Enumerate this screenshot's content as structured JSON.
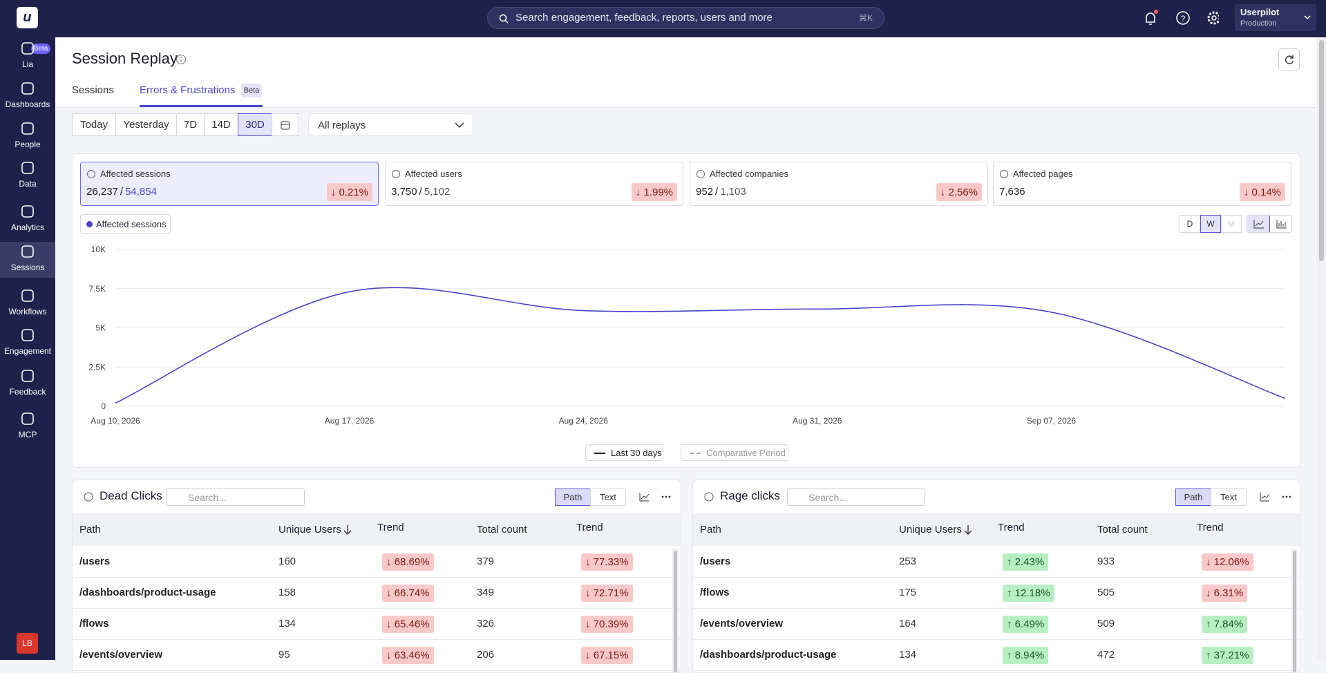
{
  "logo": "u",
  "nav": {
    "items": [
      "Lia",
      "Dashboards",
      "People",
      "Data",
      "Analytics",
      "Sessions",
      "Workflows",
      "Engagement",
      "Feedback",
      "MCP"
    ],
    "badge": "Beta",
    "avatar": "LB"
  },
  "topbar": {
    "search": "Search engagement, feedback, reports, users and more",
    "shortcut": "⌘K",
    "account": "Userpilot",
    "environment": "Production"
  },
  "header": {
    "title": "Session Replay",
    "tabs": [
      "Sessions",
      "Errors & Frustrations"
    ],
    "tab_badge": "Beta"
  },
  "filters": {
    "ranges": [
      "Today",
      "Yesterday",
      "7D",
      "14D",
      "30D"
    ],
    "dropdown": "All replays"
  },
  "metrics": [
    {
      "label": "Affected sessions",
      "value": "26,237",
      "total": "54,854",
      "change": "↓ 0.21%"
    },
    {
      "label": "Affected users",
      "value": "3,750",
      "total": "5,102",
      "change": "↓ 1.99%"
    },
    {
      "label": "Affected companies",
      "value": "952",
      "total": "1,103",
      "change": "↓ 2.56%"
    },
    {
      "label": "Affected pages",
      "value": "7,636",
      "change": "↓ 0.14%"
    }
  ],
  "chart_data": {
    "type": "line",
    "x": [
      "Aug 10, 2026",
      "Aug 17, 2026",
      "Aug 24, 2026",
      "Aug 31, 2026",
      "Sep 07, 2026",
      null
    ],
    "series": [
      {
        "name": "Affected sessions",
        "color": "#4b44c8",
        "values": [
          200,
          7300,
          6100,
          6200,
          6000,
          500
        ]
      }
    ],
    "ylim": [
      0,
      10000
    ],
    "yticks": [
      0,
      {
        "value": 2500,
        "label": "2.5K"
      },
      {
        "value": 5000,
        "label": "5K"
      },
      {
        "value": 7500,
        "label": "7.5K"
      },
      {
        "value": 10000,
        "label": "10K"
      }
    ],
    "grid": true,
    "granularity": [
      "D",
      "W",
      "M"
    ],
    "period_labels": [
      "Last 30 days",
      "Comparative Period"
    ]
  },
  "tables": [
    {
      "title": "Dead Clicks",
      "search": "Search...",
      "toggles": [
        "Path",
        "Text"
      ],
      "columns": [
        "Path",
        "Unique Users",
        "Trend",
        "Total count",
        "Trend"
      ],
      "rows": [
        [
          "/users",
          "160",
          "↓ 68.69%",
          "379",
          "↓ 77.33%"
        ],
        [
          "/dashboards/product-usage",
          "158",
          "↓ 66.74%",
          "349",
          "↓ 72.71%"
        ],
        [
          "/flows",
          "134",
          "↓ 65.46%",
          "326",
          "↓ 70.39%"
        ],
        [
          "/events/overview",
          "95",
          "↓ 63.46%",
          "206",
          "↓ 67.15%"
        ]
      ]
    },
    {
      "title": "Rage clicks",
      "search": "Search...",
      "toggles": [
        "Path",
        "Text"
      ],
      "columns": [
        "Path",
        "Unique Users",
        "Trend",
        "Total count",
        "Trend"
      ],
      "rows": [
        [
          "/users",
          "253",
          "↑ 2.43%",
          "933",
          "↓ 12.06%"
        ],
        [
          "/flows",
          "175",
          "↑ 12.18%",
          "505",
          "↓ 6.31%"
        ],
        [
          "/events/overview",
          "164",
          "↑ 6.49%",
          "509",
          "↑ 7.84%"
        ],
        [
          "/dashboards/product-usage",
          "134",
          "↑ 8.94%",
          "472",
          "↑ 37.21%"
        ]
      ]
    }
  ]
}
